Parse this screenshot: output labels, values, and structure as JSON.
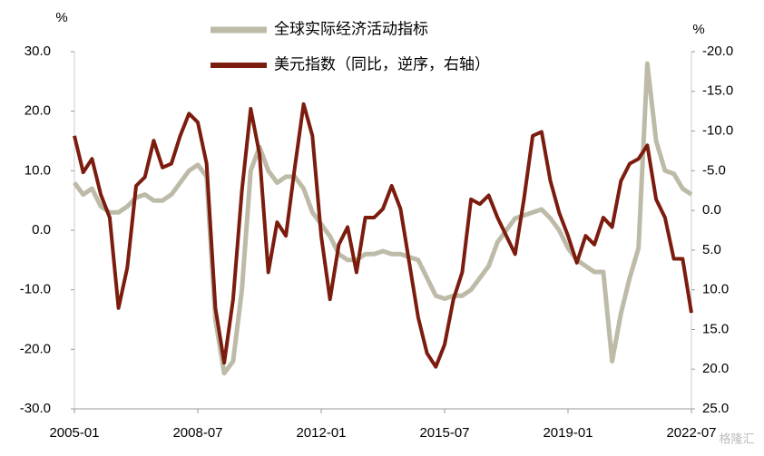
{
  "chart_data": {
    "type": "line",
    "y_label": "%",
    "y2_label": "%",
    "legend": "upper center",
    "watermark": "格隆汇",
    "x": [
      "2005-01",
      "2005-04",
      "2005-07",
      "2005-10",
      "2006-01",
      "2006-04",
      "2006-07",
      "2006-10",
      "2007-01",
      "2007-04",
      "2007-07",
      "2007-10",
      "2008-01",
      "2008-04",
      "2008-07",
      "2008-10",
      "2009-01",
      "2009-04",
      "2009-07",
      "2009-10",
      "2010-01",
      "2010-04",
      "2010-07",
      "2010-10",
      "2011-01",
      "2011-04",
      "2011-07",
      "2011-10",
      "2012-01",
      "2012-04",
      "2012-07",
      "2012-10",
      "2013-01",
      "2013-04",
      "2013-07",
      "2013-10",
      "2014-01",
      "2014-04",
      "2014-07",
      "2014-10",
      "2015-01",
      "2015-04",
      "2015-07",
      "2015-10",
      "2016-01",
      "2016-04",
      "2016-07",
      "2016-10",
      "2017-01",
      "2017-04",
      "2017-07",
      "2017-10",
      "2018-01",
      "2018-04",
      "2018-07",
      "2018-10",
      "2019-01",
      "2019-04",
      "2019-07",
      "2019-10",
      "2020-01",
      "2020-04",
      "2020-07",
      "2020-10",
      "2021-01",
      "2021-04",
      "2021-07",
      "2021-10",
      "2022-01",
      "2022-04",
      "2022-07"
    ],
    "xlim": [
      "2005-01",
      "2022-07"
    ],
    "xticks": [
      "2005-01",
      "2008-07",
      "2012-01",
      "2015-07",
      "2019-01",
      "2022-07"
    ],
    "ylim": [
      -30,
      30
    ],
    "yticks": [
      {
        "value": -30,
        "label": "-30.0"
      },
      {
        "value": -20,
        "label": "-20.0"
      },
      {
        "value": -10,
        "label": "-10.0"
      },
      {
        "value": 0,
        "label": "0.0"
      },
      {
        "value": 10,
        "label": "10.0"
      },
      {
        "value": 20,
        "label": "20.0"
      },
      {
        "value": 30,
        "label": "30.0"
      }
    ],
    "y2lim": [
      25,
      -20
    ],
    "y2ticks": [
      {
        "value": -20,
        "label": "-20.0"
      },
      {
        "value": -15,
        "label": "-15.0"
      },
      {
        "value": -10,
        "label": "-10.0"
      },
      {
        "value": -5,
        "label": "-5.0"
      },
      {
        "value": 0,
        "label": "0.0"
      },
      {
        "value": 5,
        "label": "5.0"
      },
      {
        "value": 10,
        "label": "10.0"
      },
      {
        "value": 15,
        "label": "15.0"
      },
      {
        "value": 20,
        "label": "20.0"
      },
      {
        "value": 25,
        "label": "25.0"
      }
    ],
    "series": [
      {
        "name": "全球实际经济活动指标",
        "color": "#bdbba8",
        "width": 5,
        "values": [
          8,
          6,
          7,
          4,
          3,
          3,
          4,
          5.5,
          6,
          5,
          5,
          6,
          8,
          10,
          11,
          9,
          -15,
          -24,
          -22,
          -10,
          10,
          14,
          10,
          8,
          9,
          9,
          7,
          3,
          1,
          -1,
          -4,
          -5,
          -5,
          -4,
          -4,
          -3.5,
          -4,
          -4,
          -4.5,
          -5,
          -8,
          -11,
          -11.5,
          -11,
          -11,
          -10,
          -8,
          -6,
          -2,
          0,
          2,
          2.5,
          3,
          3.5,
          2,
          0,
          -3,
          -5,
          -6,
          -7,
          -7,
          -22,
          -14,
          -8,
          -3,
          28,
          15,
          10,
          9.5,
          7,
          6
        ]
      },
      {
        "name": "美元指数（同比，逆序，右轴）",
        "color": "#7b1c0e",
        "width": 4,
        "axis": "y2",
        "values": [
          -9.4,
          -4.8,
          -6.5,
          -2,
          0.9,
          12.3,
          7.2,
          -3.1,
          -4.2,
          -8.8,
          -5.4,
          -5.9,
          -9.4,
          -12.2,
          -11.1,
          -5.9,
          12.3,
          19.2,
          11.2,
          -2.5,
          -12.8,
          -7.1,
          7.8,
          1.5,
          3.2,
          -5.4,
          -13.4,
          -9.4,
          3.2,
          11.2,
          4.3,
          2.1,
          7.8,
          0.9,
          0.9,
          -0.2,
          -3.1,
          -0.2,
          6.6,
          13.5,
          18,
          19.7,
          16.9,
          11.2,
          7.8,
          -1.4,
          -0.8,
          -1.9,
          0.9,
          3.2,
          5.5,
          -1.4,
          -9.4,
          -9.9,
          -3.7,
          0.3,
          3.2,
          6.6,
          3.2,
          4.3,
          0.9,
          2.1,
          -3.7,
          -5.9,
          -6.5,
          -8.2,
          -1.4,
          0.9,
          6.1,
          6.1,
          12.9
        ]
      }
    ]
  }
}
